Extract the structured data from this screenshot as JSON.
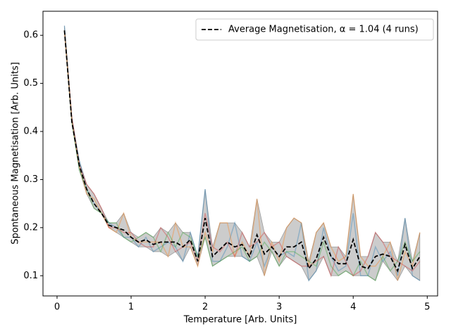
{
  "chart_data": {
    "type": "line",
    "xlabel": "Temperature [Arb. Units]",
    "ylabel": "Spontaneous Magnetisation [Arb. Units]",
    "x": [
      0.1,
      0.2,
      0.3,
      0.4,
      0.5,
      0.6,
      0.7,
      0.8,
      0.9,
      1.0,
      1.1,
      1.2,
      1.3,
      1.4,
      1.5,
      1.6,
      1.7,
      1.8,
      1.9,
      2.0,
      2.1,
      2.2,
      2.3,
      2.4,
      2.5,
      2.6,
      2.7,
      2.8,
      2.9,
      3.0,
      3.1,
      3.2,
      3.3,
      3.4,
      3.5,
      3.6,
      3.7,
      3.8,
      3.9,
      4.0,
      4.1,
      4.2,
      4.3,
      4.4,
      4.5,
      4.6,
      4.7,
      4.8,
      4.9
    ],
    "runs": [
      {
        "color": "#1f77b4",
        "values": [
          0.62,
          0.42,
          0.34,
          0.28,
          0.25,
          0.23,
          0.21,
          0.2,
          0.18,
          0.18,
          0.16,
          0.18,
          0.15,
          0.16,
          0.17,
          0.16,
          0.13,
          0.19,
          0.14,
          0.28,
          0.13,
          0.13,
          0.16,
          0.21,
          0.14,
          0.13,
          0.17,
          0.12,
          0.16,
          0.14,
          0.15,
          0.14,
          0.21,
          0.09,
          0.11,
          0.2,
          0.14,
          0.11,
          0.12,
          0.23,
          0.1,
          0.1,
          0.16,
          0.13,
          0.15,
          0.1,
          0.22,
          0.1,
          0.09
        ]
      },
      {
        "color": "#ff7f0e",
        "values": [
          0.61,
          0.42,
          0.33,
          0.27,
          0.26,
          0.23,
          0.2,
          0.19,
          0.23,
          0.18,
          0.17,
          0.17,
          0.17,
          0.17,
          0.14,
          0.21,
          0.16,
          0.16,
          0.12,
          0.19,
          0.15,
          0.21,
          0.21,
          0.14,
          0.17,
          0.14,
          0.26,
          0.1,
          0.17,
          0.13,
          0.2,
          0.22,
          0.21,
          0.12,
          0.19,
          0.21,
          0.16,
          0.13,
          0.14,
          0.27,
          0.14,
          0.12,
          0.12,
          0.14,
          0.17,
          0.09,
          0.15,
          0.12,
          0.19
        ]
      },
      {
        "color": "#2ca02c",
        "values": [
          0.61,
          0.42,
          0.32,
          0.28,
          0.24,
          0.23,
          0.21,
          0.21,
          0.18,
          0.17,
          0.18,
          0.19,
          0.18,
          0.15,
          0.19,
          0.16,
          0.19,
          0.18,
          0.14,
          0.18,
          0.12,
          0.13,
          0.14,
          0.15,
          0.16,
          0.13,
          0.14,
          0.17,
          0.15,
          0.12,
          0.15,
          0.15,
          0.14,
          0.13,
          0.12,
          0.17,
          0.12,
          0.1,
          0.11,
          0.1,
          0.13,
          0.1,
          0.09,
          0.14,
          0.11,
          0.13,
          0.17,
          0.13,
          0.15
        ]
      },
      {
        "color": "#d62728",
        "values": [
          0.61,
          0.43,
          0.33,
          0.29,
          0.27,
          0.24,
          0.2,
          0.2,
          0.19,
          0.19,
          0.17,
          0.16,
          0.16,
          0.2,
          0.18,
          0.15,
          0.16,
          0.17,
          0.13,
          0.23,
          0.16,
          0.15,
          0.17,
          0.14,
          0.19,
          0.16,
          0.17,
          0.19,
          0.16,
          0.17,
          0.14,
          0.13,
          0.12,
          0.12,
          0.13,
          0.14,
          0.1,
          0.16,
          0.13,
          0.1,
          0.11,
          0.14,
          0.19,
          0.17,
          0.14,
          0.13,
          0.12,
          0.11,
          0.13
        ]
      }
    ],
    "series": [
      {
        "name": "Average Magnetisation, α = 1.04 (4 runs)",
        "color": "#000000",
        "values": [
          0.61,
          0.42,
          0.33,
          0.28,
          0.25,
          0.23,
          0.205,
          0.2,
          0.195,
          0.18,
          0.17,
          0.175,
          0.165,
          0.17,
          0.17,
          0.17,
          0.16,
          0.175,
          0.13,
          0.22,
          0.14,
          0.155,
          0.17,
          0.16,
          0.165,
          0.14,
          0.185,
          0.145,
          0.16,
          0.14,
          0.16,
          0.16,
          0.17,
          0.115,
          0.135,
          0.18,
          0.14,
          0.125,
          0.125,
          0.175,
          0.12,
          0.115,
          0.14,
          0.145,
          0.14,
          0.11,
          0.165,
          0.115,
          0.14
        ]
      }
    ],
    "band_color": "#808080",
    "xlim": [
      -0.19,
      5.14
    ],
    "ylim": [
      0.058,
      0.65
    ],
    "xticks": [
      0,
      1,
      2,
      3,
      4,
      5
    ],
    "yticks": [
      0.1,
      0.2,
      0.3,
      0.4,
      0.5,
      0.6
    ],
    "legend": "upper right"
  }
}
